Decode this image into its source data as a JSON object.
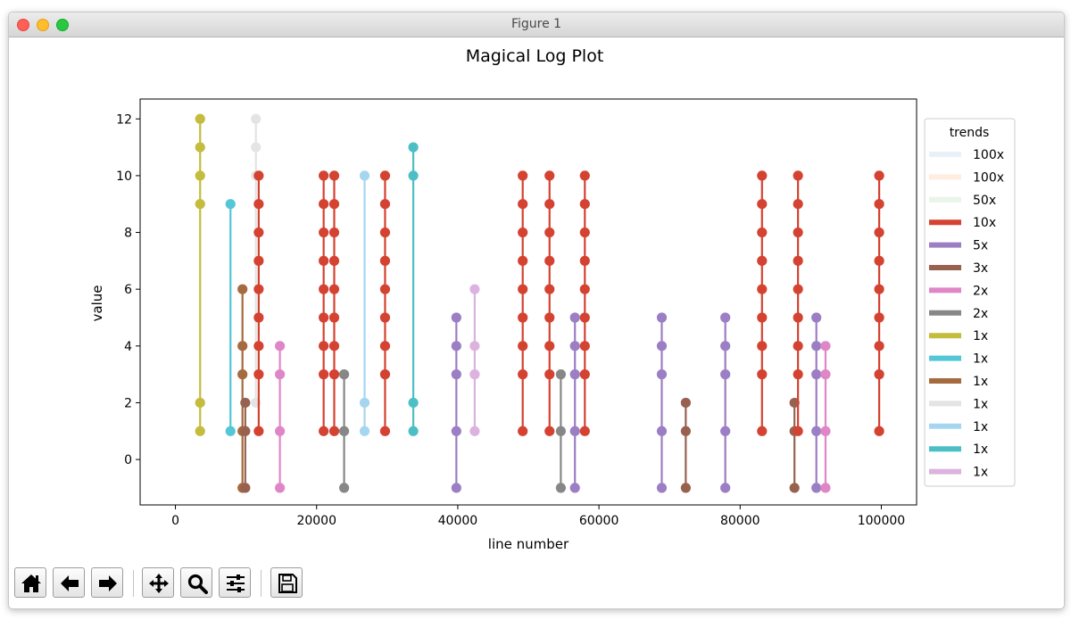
{
  "window": {
    "title": "Figure 1"
  },
  "toolbar": {
    "buttons": [
      {
        "name": "home-button",
        "icon": "home-icon"
      },
      {
        "name": "back-button",
        "icon": "arrow-left-icon"
      },
      {
        "name": "forward-button",
        "icon": "arrow-right-icon"
      },
      {
        "name": "pan-button",
        "icon": "move-icon"
      },
      {
        "name": "zoom-button",
        "icon": "magnifier-icon"
      },
      {
        "name": "configure-subplots-button",
        "icon": "sliders-icon"
      },
      {
        "name": "save-button",
        "icon": "floppy-disk-icon"
      }
    ]
  },
  "chart_data": {
    "type": "line",
    "title": "Magical Log Plot",
    "xlabel": "line number",
    "ylabel": "value",
    "xlim": [
      -5000,
      105000
    ],
    "ylim": [
      -1.6,
      12.7
    ],
    "xticks": [
      0,
      20000,
      40000,
      60000,
      80000,
      100000
    ],
    "yticks": [
      0,
      2,
      4,
      6,
      8,
      10,
      12
    ],
    "grid": false,
    "legend_title": "trends",
    "legend_position": "right-outside",
    "legend": [
      {
        "label": "100x",
        "color": "#d3e2f0",
        "alpha": 0.5
      },
      {
        "label": "100x",
        "color": "#fddcc2",
        "alpha": 0.5
      },
      {
        "label": "50x",
        "color": "#d6ebd3",
        "alpha": 0.5
      },
      {
        "label": "10x",
        "color": "#d44231"
      },
      {
        "label": "5x",
        "color": "#9b7ec4"
      },
      {
        "label": "3x",
        "color": "#98614f"
      },
      {
        "label": "2x",
        "color": "#df87c6"
      },
      {
        "label": "2x",
        "color": "#878787"
      },
      {
        "label": "1x",
        "color": "#c4bc3c"
      },
      {
        "label": "1x",
        "color": "#53c6d8"
      },
      {
        "label": "1x",
        "color": "#a56a3e"
      },
      {
        "label": "1x",
        "color": "#e4e4e4"
      },
      {
        "label": "1x",
        "color": "#a6d6ef"
      },
      {
        "label": "1x",
        "color": "#4cbfc6"
      },
      {
        "label": "1x",
        "color": "#dcb3df"
      }
    ],
    "series": [
      {
        "x": 3500,
        "values": [
          1,
          2,
          9,
          10,
          11,
          12
        ],
        "color": "#c4bc3c"
      },
      {
        "x": 7800,
        "values": [
          1,
          9
        ],
        "color": "#53c6d8"
      },
      {
        "x": 9500,
        "values": [
          -1,
          1,
          3,
          4,
          6
        ],
        "color": "#a56a3e"
      },
      {
        "x": 9900,
        "values": [
          -1,
          1,
          2
        ],
        "color": "#98614f"
      },
      {
        "x": 11400,
        "values": [
          2,
          10,
          11,
          12
        ],
        "color": "#e4e4e4"
      },
      {
        "x": 11800,
        "values": [
          1,
          3,
          4,
          5,
          6,
          7,
          8,
          9,
          10
        ],
        "color": "#d44231"
      },
      {
        "x": 14800,
        "values": [
          -1,
          1,
          3,
          4
        ],
        "color": "#df87c6"
      },
      {
        "x": 21000,
        "values": [
          1,
          3,
          4,
          5,
          6,
          7,
          8,
          9,
          10
        ],
        "color": "#d44231"
      },
      {
        "x": 22500,
        "values": [
          1,
          3,
          4,
          5,
          6,
          7,
          8,
          9,
          10
        ],
        "color": "#d44231"
      },
      {
        "x": 23900,
        "values": [
          -1,
          1,
          3
        ],
        "color": "#878787"
      },
      {
        "x": 26800,
        "values": [
          1,
          2,
          10
        ],
        "color": "#a6d6ef"
      },
      {
        "x": 29700,
        "values": [
          1,
          3,
          4,
          5,
          6,
          7,
          8,
          9,
          10
        ],
        "color": "#d44231"
      },
      {
        "x": 33700,
        "values": [
          1,
          2,
          10,
          11
        ],
        "color": "#4cbfc6"
      },
      {
        "x": 39800,
        "values": [
          -1,
          1,
          3,
          4,
          5
        ],
        "color": "#9b7ec4"
      },
      {
        "x": 42400,
        "values": [
          1,
          3,
          4,
          6
        ],
        "color": "#dcb3df"
      },
      {
        "x": 49200,
        "values": [
          1,
          3,
          4,
          5,
          6,
          7,
          8,
          9,
          10
        ],
        "color": "#d44231"
      },
      {
        "x": 53000,
        "values": [
          1,
          3,
          4,
          5,
          6,
          7,
          8,
          9,
          10
        ],
        "color": "#d44231"
      },
      {
        "x": 54600,
        "values": [
          -1,
          1,
          3
        ],
        "color": "#878787"
      },
      {
        "x": 56600,
        "values": [
          -1,
          1,
          3,
          4,
          5
        ],
        "color": "#9b7ec4"
      },
      {
        "x": 58000,
        "values": [
          1,
          3,
          4,
          5,
          6,
          7,
          8,
          9,
          10
        ],
        "color": "#d44231"
      },
      {
        "x": 68900,
        "values": [
          -1,
          1,
          3,
          4,
          5
        ],
        "color": "#9b7ec4"
      },
      {
        "x": 72300,
        "values": [
          -1,
          1,
          2
        ],
        "color": "#98614f"
      },
      {
        "x": 77900,
        "values": [
          -1,
          1,
          3,
          4,
          5
        ],
        "color": "#9b7ec4"
      },
      {
        "x": 83100,
        "values": [
          1,
          3,
          4,
          5,
          6,
          7,
          8,
          9,
          10
        ],
        "color": "#d44231"
      },
      {
        "x": 87700,
        "values": [
          -1,
          1,
          2
        ],
        "color": "#98614f"
      },
      {
        "x": 88200,
        "values": [
          1,
          3,
          4,
          5,
          6,
          7,
          8,
          9,
          10
        ],
        "color": "#d44231"
      },
      {
        "x": 90800,
        "values": [
          -1,
          1,
          3,
          4,
          5
        ],
        "color": "#9b7ec4"
      },
      {
        "x": 92100,
        "values": [
          -1,
          1,
          3,
          4
        ],
        "color": "#df87c6"
      },
      {
        "x": 99700,
        "values": [
          1,
          3,
          4,
          5,
          6,
          7,
          8,
          9,
          10
        ],
        "color": "#d44231"
      }
    ]
  }
}
